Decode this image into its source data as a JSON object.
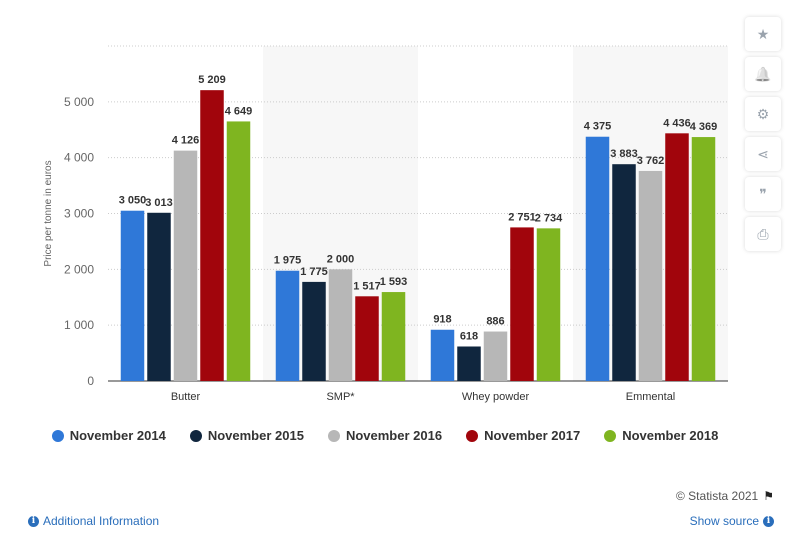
{
  "chart_data": {
    "type": "bar",
    "categories": [
      "Butter",
      "SMP*",
      "Whey powder",
      "Emmental"
    ],
    "series": [
      {
        "name": "November 2014",
        "color": "#2f78d8",
        "values": [
          3050,
          1975,
          918,
          4375
        ],
        "labels": [
          "3 050",
          "1 975",
          "918",
          "4 375"
        ]
      },
      {
        "name": "November 2015",
        "color": "#10263e",
        "values": [
          3013,
          1775,
          618,
          3883
        ],
        "labels": [
          "3 013",
          "1 775",
          "618",
          "3 883"
        ]
      },
      {
        "name": "November 2016",
        "color": "#b7b7b7",
        "values": [
          4126,
          2000,
          886,
          3762
        ],
        "labels": [
          "4 126",
          "2 000",
          "886",
          "3 762"
        ]
      },
      {
        "name": "November 2017",
        "color": "#a1050c",
        "values": [
          5209,
          1517,
          2751,
          4436
        ],
        "labels": [
          "5 209",
          "1 517",
          "2 751",
          "4 436"
        ]
      },
      {
        "name": "November 2018",
        "color": "#7fb520",
        "values": [
          4649,
          1593,
          2734,
          4369
        ],
        "labels": [
          "4 649",
          "1 593",
          "2 734",
          "4 369"
        ]
      }
    ],
    "ylabel": "Price per tonne in euros",
    "xlabel": "",
    "ylim": [
      0,
      6000
    ],
    "yticks": [
      0,
      1000,
      2000,
      3000,
      4000,
      5000
    ],
    "ytick_labels": [
      "0",
      "1 000",
      "2 000",
      "3 000",
      "4 000",
      "5 000"
    ],
    "grid": true,
    "legend_position": "bottom"
  },
  "legend": {
    "items": [
      "November 2014",
      "November 2015",
      "November 2016",
      "November 2017",
      "November 2018"
    ]
  },
  "sidebar": {
    "buttons": [
      "star",
      "bell",
      "gear",
      "share",
      "quote",
      "print"
    ],
    "glyphs": [
      "★",
      "🔔",
      "⚙",
      "⋖",
      "❞",
      "⎙"
    ]
  },
  "footer": {
    "credit": "© Statista 2021",
    "additional_info": "Additional Information",
    "show_source": "Show source"
  }
}
